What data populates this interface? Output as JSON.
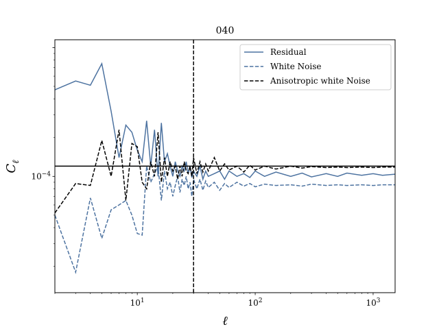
{
  "chart_data": {
    "type": "line",
    "title": "040",
    "xlabel": "ℓ",
    "ylabel": "C",
    "ylabel_sub": "ℓ",
    "xscale": "log",
    "yscale": "log",
    "xlim": [
      2,
      1536
    ],
    "ylim": [
      1.25e-05,
      0.00115
    ],
    "x_ticks": [
      {
        "value": 10,
        "base": "10",
        "exp": "1"
      },
      {
        "value": 100,
        "base": "10",
        "exp": "2"
      },
      {
        "value": 1000,
        "base": "10",
        "exp": "3"
      }
    ],
    "y_ticks": [
      {
        "value": 0.0001,
        "base": "10",
        "exp": "−4"
      }
    ],
    "hline": {
      "y": 0.00012,
      "color": "#000000"
    },
    "vline": {
      "x": 30,
      "color": "#000000",
      "style": "dashed"
    },
    "legend_position": "top-right",
    "series": [
      {
        "name": "Residual",
        "color": "#4c72a0",
        "style": "solid",
        "x": [
          2,
          3,
          4,
          5,
          6,
          7,
          8,
          9,
          10,
          11,
          12,
          13,
          14,
          15,
          16,
          17,
          18,
          19,
          20,
          21,
          22,
          23,
          24,
          25,
          26,
          27,
          28,
          29,
          30,
          32,
          34,
          36,
          38,
          40,
          45,
          50,
          55,
          60,
          70,
          80,
          90,
          100,
          120,
          150,
          200,
          250,
          300,
          400,
          500,
          600,
          800,
          1000,
          1200,
          1536
        ],
        "values": [
          0.00047,
          0.00055,
          0.00051,
          0.00075,
          0.00032,
          0.00014,
          0.00025,
          0.00022,
          0.00016,
          0.00013,
          0.00027,
          0.00012,
          0.00023,
          0.0001,
          0.00026,
          0.00013,
          0.00015,
          0.00012,
          0.0001,
          0.00013,
          0.00011,
          0.0001,
          0.00012,
          0.00011,
          0.00013,
          0.000105,
          0.00012,
          9.8e-05,
          0.00011,
          0.0001,
          0.00012,
          9.5e-05,
          0.00011,
          0.0001,
          0.000105,
          0.00011,
          9.5e-05,
          0.00011,
          0.0001,
          0.000105,
          9.8e-05,
          0.00011,
          0.0001,
          0.000108,
          0.0001,
          0.000106,
          9.9e-05,
          0.000105,
          0.0001,
          0.000106,
          0.000102,
          0.000105,
          0.000102,
          0.000104
        ]
      },
      {
        "name": "White Noise",
        "color": "#4c72a0",
        "style": "dashed",
        "x": [
          2,
          3,
          4,
          5,
          6,
          7,
          8,
          9,
          10,
          11,
          12,
          13,
          14,
          15,
          16,
          17,
          18,
          19,
          20,
          21,
          22,
          23,
          24,
          25,
          26,
          27,
          28,
          29,
          30,
          32,
          34,
          36,
          38,
          40,
          45,
          50,
          55,
          60,
          70,
          80,
          90,
          100,
          120,
          150,
          200,
          250,
          300,
          400,
          500,
          600,
          800,
          1000,
          1200,
          1536
        ],
        "values": [
          5e-05,
          1.8e-05,
          6.8e-05,
          3.3e-05,
          5.5e-05,
          6e-05,
          6.5e-05,
          5e-05,
          3.6e-05,
          3.5e-05,
          0.00012,
          9e-05,
          0.000105,
          0.00012,
          6.5e-05,
          0.00011,
          8e-05,
          9e-05,
          7e-05,
          8.5e-05,
          0.0001,
          7.5e-05,
          9.5e-05,
          8.5e-05,
          0.0001,
          8e-05,
          9e-05,
          7e-05,
          9.5e-05,
          8e-05,
          9.5e-05,
          7.8e-05,
          9.2e-05,
          8.2e-05,
          9e-05,
          7.8e-05,
          8.8e-05,
          8.2e-05,
          9e-05,
          8.4e-05,
          8.8e-05,
          8.3e-05,
          8.7e-05,
          8.5e-05,
          8.6e-05,
          8.4e-05,
          8.7e-05,
          8.5e-05,
          8.6e-05,
          8.5e-05,
          8.6e-05,
          8.5e-05,
          8.6e-05,
          8.6e-05
        ]
      },
      {
        "name": "Anisotropic white Noise",
        "color": "#000000",
        "style": "dashed",
        "x": [
          2,
          3,
          4,
          5,
          6,
          7,
          8,
          9,
          10,
          11,
          12,
          13,
          14,
          15,
          16,
          17,
          18,
          19,
          20,
          21,
          22,
          23,
          24,
          25,
          26,
          27,
          28,
          29,
          30,
          32,
          34,
          36,
          38,
          40,
          45,
          50,
          55,
          60,
          70,
          80,
          90,
          100,
          120,
          150,
          200,
          250,
          300,
          400,
          500,
          600,
          800,
          1000,
          1200,
          1536
        ],
        "values": [
          5.2e-05,
          8.8e-05,
          8.5e-05,
          0.00019,
          0.0001,
          0.00023,
          6.5e-05,
          0.00018,
          0.00017,
          9e-05,
          8e-05,
          0.00013,
          0.0001,
          0.00022,
          9e-05,
          0.00014,
          0.0001,
          0.00013,
          0.00011,
          0.00012,
          9.5e-05,
          0.00012,
          0.0001,
          0.00013,
          0.00011,
          0.000105,
          0.00012,
          0.0001,
          0.00014,
          0.000105,
          0.00013,
          0.000108,
          0.000125,
          0.00011,
          0.00014,
          0.00011,
          0.000125,
          0.000112,
          0.00012,
          0.000108,
          0.000122,
          0.000112,
          0.00012,
          0.000114,
          0.00012,
          0.000116,
          0.000119,
          0.000117,
          0.000118,
          0.000117,
          0.000118,
          0.000117,
          0.000118,
          0.000118
        ]
      }
    ]
  }
}
